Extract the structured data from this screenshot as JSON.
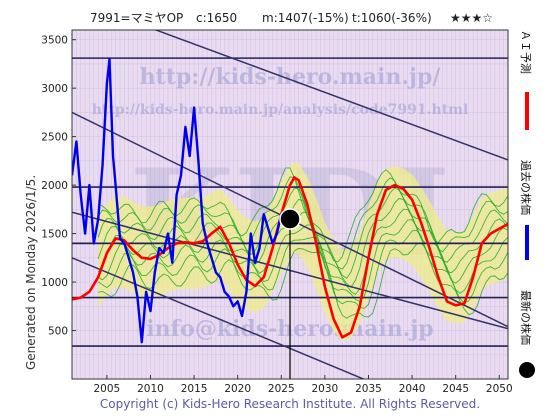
{
  "header": {
    "code_name": "7991=マミヤOP",
    "current": "c:1650",
    "mid": "m:1407(-15%)",
    "target": "t:1060(-36%)",
    "stars": "★★★☆"
  },
  "side_label": "Generated on Monday 2026/1/5.",
  "footer": "Copyright (c) Kids-Hero Research Institute. All Rights Reserved.",
  "watermarks": {
    "big": "KIDI",
    "url1": "http://kids-hero.main.jp/",
    "url2": "http://kids-hero.main.jp/analysis/code7991.html",
    "mail": "info@kids-hero.main.jp"
  },
  "legend": {
    "ai_forecast": "ＡＩ予測",
    "past_price": "過去の株価",
    "latest_price": "最新の株価"
  },
  "colors": {
    "ai_forecast": "#ff0000",
    "past_price": "#0000ee",
    "latest_marker": "#000000",
    "green_band": "#22aa22",
    "yellow_band": "#eeee88",
    "channel": "#333366",
    "grid_line": "#222255",
    "plot_bg": "#e8d8f0"
  },
  "chart_data": {
    "type": "line",
    "xlim": [
      2001,
      2051
    ],
    "ylim": [
      0,
      3600
    ],
    "x_ticks": [
      2005,
      2010,
      2015,
      2020,
      2025,
      2030,
      2035,
      2040,
      2045,
      2050
    ],
    "y_ticks": [
      500,
      1000,
      1500,
      2000,
      2500,
      3000,
      3500
    ],
    "horizontal_lines": [
      340,
      840,
      1400,
      1980,
      3310
    ],
    "latest_point": {
      "x": 2026.0,
      "y": 1650
    },
    "channels": [
      {
        "x": [
          2001,
          2051
        ],
        "y": [
          3920,
          2260
        ]
      },
      {
        "x": [
          2001,
          2051
        ],
        "y": [
          2750,
          540
        ]
      },
      {
        "x": [
          2001,
          2051
        ],
        "y": [
          1720,
          520
        ]
      },
      {
        "x": [
          2001,
          2051
        ],
        "y": [
          1250,
          -620
        ]
      }
    ],
    "series": [
      {
        "name": "AI予測",
        "x": [
          2001,
          2002,
          2003,
          2004,
          2005,
          2006,
          2007,
          2008,
          2009,
          2010,
          2011,
          2012,
          2013,
          2014,
          2015,
          2016,
          2017,
          2018,
          2019,
          2020,
          2021,
          2022,
          2023,
          2024,
          2025,
          2025.5,
          2026,
          2026.5,
          2027,
          2028,
          2029,
          2030,
          2031,
          2032,
          2033,
          2034,
          2035,
          2036,
          2037,
          2038,
          2039,
          2040,
          2041,
          2042,
          2043,
          2044,
          2045,
          2046,
          2047,
          2048,
          2049,
          2050,
          2051
        ],
        "y": [
          820,
          840,
          900,
          1050,
          1300,
          1450,
          1430,
          1330,
          1250,
          1240,
          1280,
          1350,
          1400,
          1410,
          1400,
          1420,
          1500,
          1570,
          1400,
          1180,
          1020,
          960,
          1050,
          1350,
          1700,
          1850,
          2000,
          2080,
          2050,
          1800,
          1400,
          950,
          620,
          430,
          480,
          750,
          1250,
          1700,
          1950,
          2000,
          1960,
          1850,
          1620,
          1350,
          1050,
          800,
          760,
          780,
          1050,
          1400,
          1500,
          1550,
          1600
        ]
      },
      {
        "name": "過去の株価",
        "x": [
          2001,
          2001.5,
          2002,
          2002.5,
          2003,
          2003.5,
          2004,
          2004.5,
          2005,
          2005.3,
          2005.7,
          2006,
          2006.5,
          2007,
          2007.5,
          2008,
          2008.5,
          2009,
          2009.5,
          2010,
          2010.5,
          2011,
          2011.5,
          2012,
          2012.5,
          2013,
          2013.5,
          2014,
          2014.5,
          2015,
          2015.5,
          2016,
          2016.5,
          2017,
          2017.5,
          2018,
          2018.5,
          2019,
          2019.5,
          2020,
          2020.5,
          2021,
          2021.5,
          2022,
          2022.5,
          2023,
          2023.5,
          2024,
          2024.5,
          2025,
          2025.5,
          2026
        ],
        "y": [
          2100,
          2450,
          1900,
          1500,
          2000,
          1400,
          1650,
          2200,
          3050,
          3300,
          2300,
          2000,
          1450,
          1400,
          1250,
          1100,
          850,
          380,
          900,
          700,
          1100,
          1350,
          1300,
          1500,
          1200,
          1900,
          2100,
          2600,
          2300,
          2800,
          2250,
          1600,
          1400,
          1250,
          1100,
          1050,
          900,
          850,
          750,
          800,
          650,
          900,
          1500,
          1200,
          1350,
          1700,
          1550,
          1400,
          1500,
          1700,
          1600,
          1650
        ]
      }
    ]
  }
}
